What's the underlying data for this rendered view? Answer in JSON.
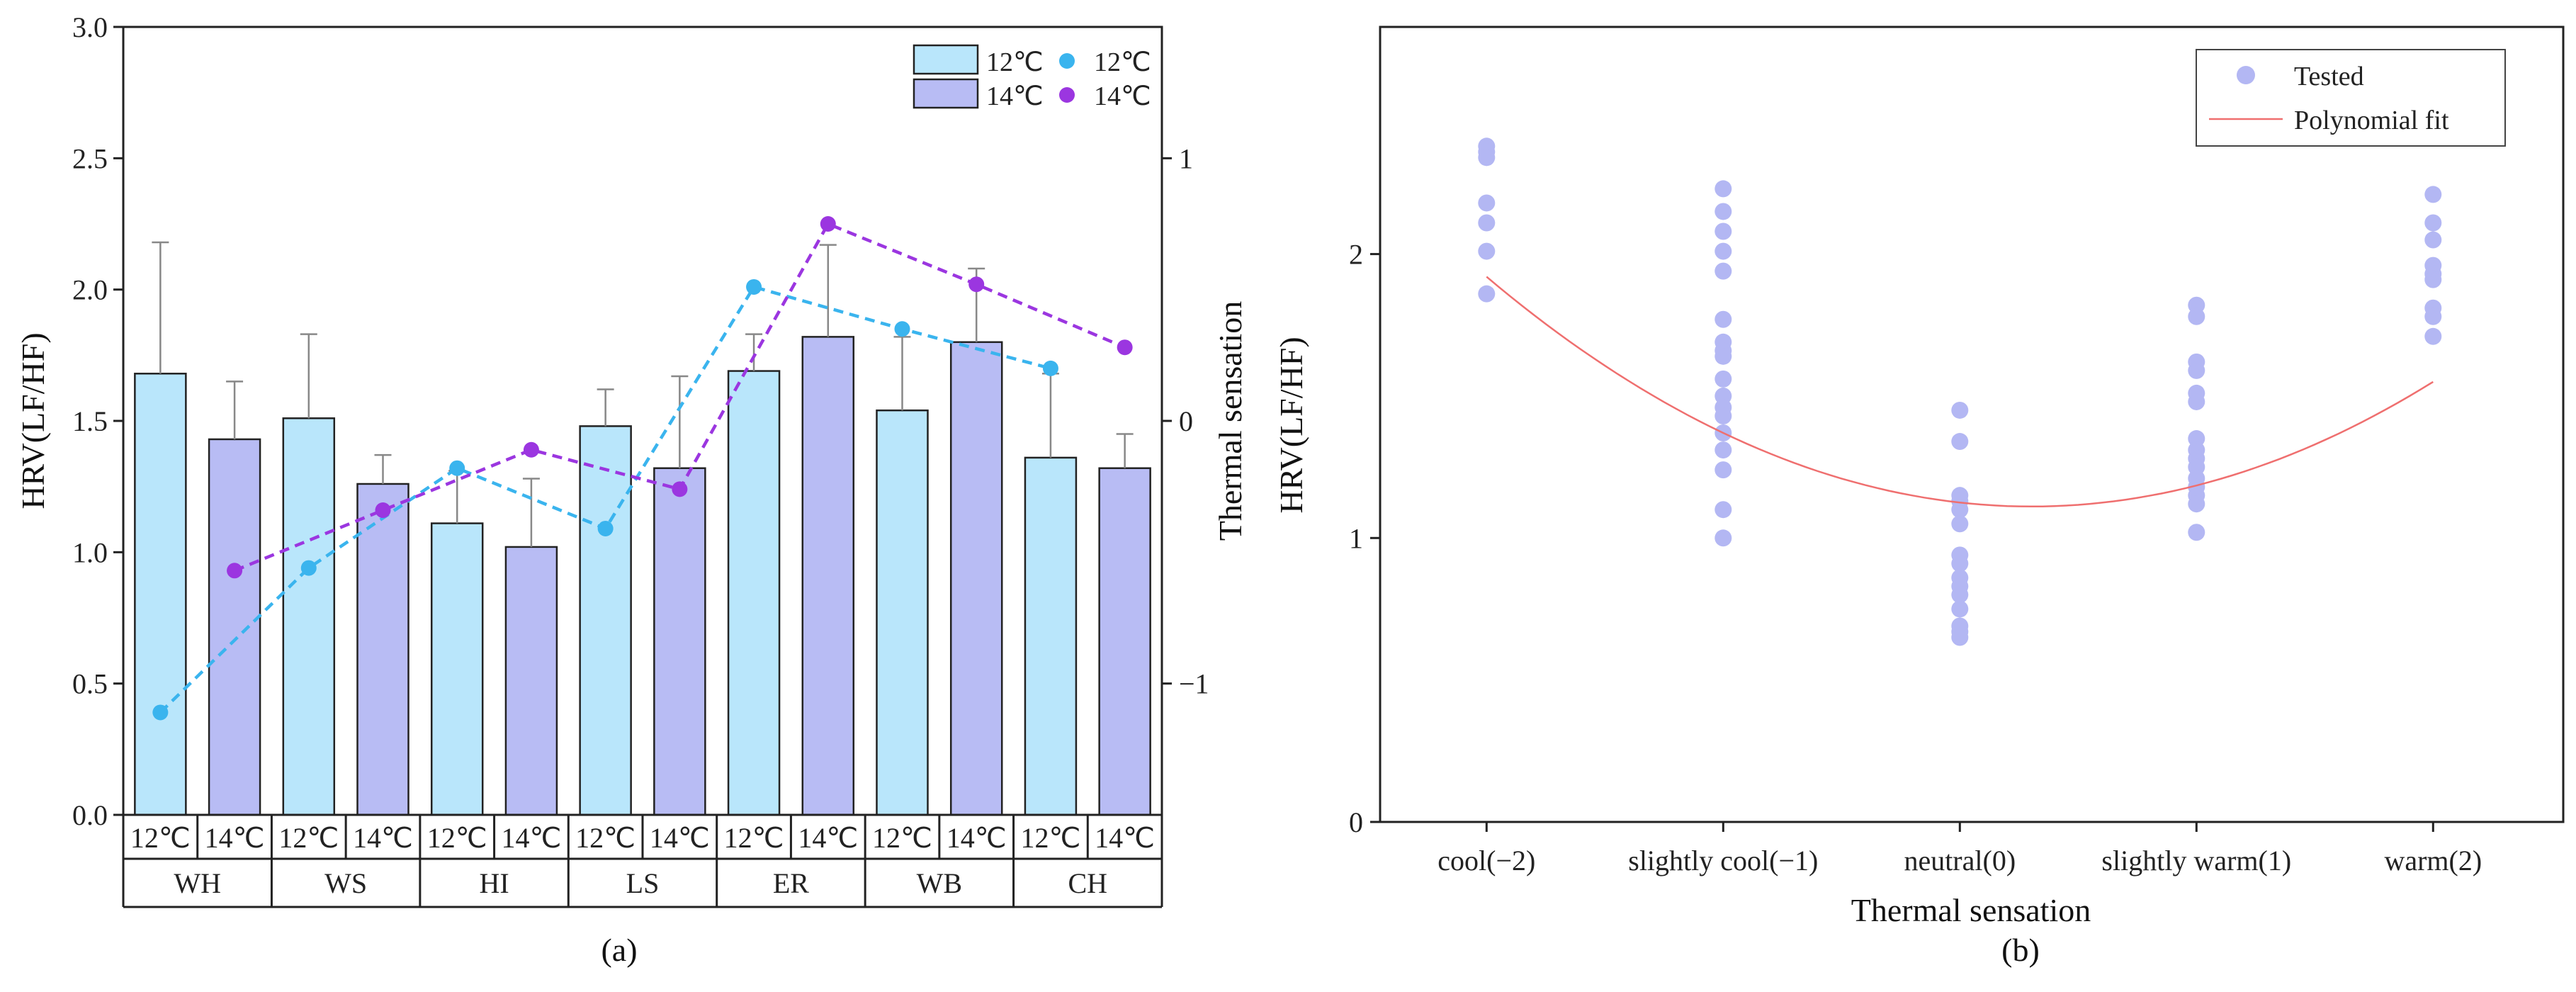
{
  "chart_data": [
    {
      "type": "bar",
      "panel_label": "(a)",
      "ylabel_left": "HRV(LF/HF)",
      "ylabel_right": "Thermal sensation",
      "ylim_left": [
        0,
        3.0
      ],
      "yticks_left": [
        "0.0",
        "0.5",
        "1.0",
        "1.5",
        "2.0",
        "2.5",
        "3.0"
      ],
      "ylim_right": [
        -1.5,
        1.5
      ],
      "yticks_right": [
        "-1",
        "0",
        "1"
      ],
      "groups": [
        "WH",
        "WS",
        "HI",
        "LS",
        "ER",
        "WB",
        "CH"
      ],
      "sub_labels": [
        "12℃",
        "14℃"
      ],
      "bar_series": [
        {
          "name": "12℃",
          "color": "#b9e6fb",
          "values": [
            1.68,
            1.51,
            1.11,
            1.48,
            1.69,
            1.54,
            1.36
          ],
          "errors": [
            0.5,
            0.32,
            0.2,
            0.14,
            0.14,
            0.28,
            0.32
          ]
        },
        {
          "name": "14℃",
          "color": "#b8bcf4",
          "values": [
            1.43,
            1.26,
            1.02,
            1.32,
            1.82,
            1.8,
            1.32
          ],
          "errors": [
            0.22,
            0.11,
            0.26,
            0.35,
            0.35,
            0.28,
            0.13
          ]
        }
      ],
      "line_series": [
        {
          "name": "12℃",
          "color": "#3ab4ee",
          "values": [
            -1.11,
            -0.56,
            -0.18,
            -0.41,
            0.51,
            0.35,
            0.2
          ]
        },
        {
          "name": "14℃",
          "color": "#9b36e0",
          "values": [
            -0.57,
            -0.34,
            -0.11,
            -0.26,
            0.75,
            0.52,
            0.28
          ]
        }
      ]
    },
    {
      "type": "scatter",
      "panel_label": "(b)",
      "xlabel": "Thermal sensation",
      "ylabel": "HRV(LF/HF)",
      "xlim": [
        -2.45,
        2.55
      ],
      "ylim": [
        0,
        2.8
      ],
      "yticks": [
        "0",
        "1",
        "2"
      ],
      "xticks": [
        {
          "value": -2,
          "label": "cool(−2)"
        },
        {
          "value": -1,
          "label": "slightly cool(−1)"
        },
        {
          "value": 0,
          "label": "neutral(0)"
        },
        {
          "value": 1,
          "label": "slightly warm(1)"
        },
        {
          "value": 2,
          "label": "warm(2)"
        }
      ],
      "legend": [
        "Tested",
        "Polynomial fit"
      ],
      "points": [
        {
          "x": -2,
          "ys": [
            2.38,
            2.36,
            2.34,
            2.18,
            2.11,
            2.01,
            1.86
          ]
        },
        {
          "x": -1,
          "ys": [
            2.23,
            2.15,
            2.08,
            2.01,
            1.94,
            1.77,
            1.69,
            1.66,
            1.64,
            1.56,
            1.5,
            1.46,
            1.43,
            1.37,
            1.31,
            1.24,
            1.1,
            1.0
          ]
        },
        {
          "x": 0,
          "ys": [
            1.45,
            1.34,
            1.15,
            1.13,
            1.1,
            1.05,
            0.94,
            0.91,
            0.86,
            0.83,
            0.8,
            0.75,
            0.69,
            0.67,
            0.65
          ]
        },
        {
          "x": 1,
          "ys": [
            1.82,
            1.78,
            1.62,
            1.59,
            1.51,
            1.48,
            1.35,
            1.31,
            1.28,
            1.25,
            1.21,
            1.18,
            1.15,
            1.12,
            1.02
          ]
        },
        {
          "x": 2,
          "ys": [
            2.21,
            2.11,
            2.05,
            1.96,
            1.93,
            1.91,
            1.81,
            1.78,
            1.71
          ]
        }
      ],
      "fit_coefficients": {
        "a": 0.1525,
        "b": -0.0925,
        "c": 1.125
      },
      "colors": {
        "points": "#b3b7f3",
        "fit": "#ef6f6f"
      }
    }
  ]
}
